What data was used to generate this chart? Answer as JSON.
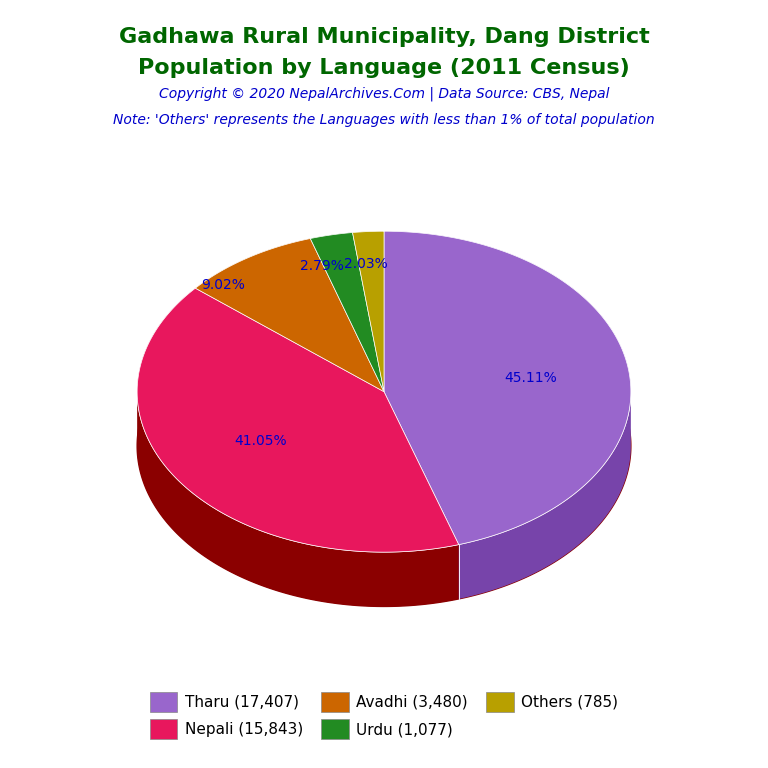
{
  "title_line1": "Gadhawa Rural Municipality, Dang District",
  "title_line2": "Population by Language (2011 Census)",
  "copyright": "Copyright © 2020 NepalArchives.Com | Data Source: CBS, Nepal",
  "note": "Note: 'Others' represents the Languages with less than 1% of total population",
  "labels": [
    "Tharu",
    "Nepali",
    "Avadhi",
    "Urdu",
    "Others"
  ],
  "values": [
    17407,
    15843,
    3480,
    1077,
    785
  ],
  "percentages": [
    45.11,
    41.05,
    9.02,
    2.79,
    2.03
  ],
  "colors": [
    "#9966CC",
    "#E8175D",
    "#CC6600",
    "#228B22",
    "#B8A000"
  ],
  "dark_colors": [
    "#7744AA",
    "#8B0000",
    "#884400",
    "#145214",
    "#7A6500"
  ],
  "shadow_color": "#8B0000",
  "legend_labels": [
    "Tharu (17,407)",
    "Nepali (15,843)",
    "Avadhi (3,480)",
    "Urdu (1,077)",
    "Others (785)"
  ],
  "title_color": "#006600",
  "copyright_color": "#0000CC",
  "note_color": "#0000CC",
  "pct_label_color": "#0000CC",
  "background_color": "#FFFFFF"
}
